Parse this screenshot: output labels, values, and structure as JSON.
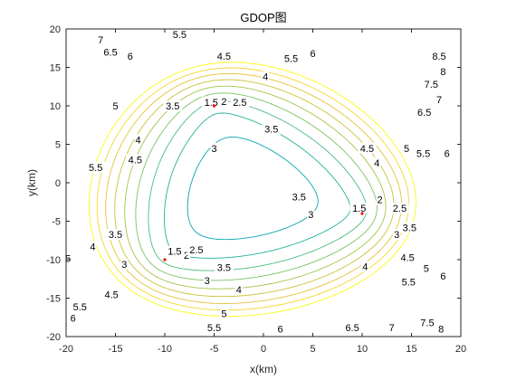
{
  "chart_data": {
    "type": "contour",
    "title": "GDOP图",
    "xlabel": "x(km)",
    "ylabel": "y(km)",
    "xlim": [
      -20,
      20
    ],
    "ylim": [
      -20,
      20
    ],
    "xticks": [
      -20,
      -15,
      -10,
      -5,
      0,
      5,
      10,
      15,
      20
    ],
    "yticks": [
      -20,
      -15,
      -10,
      -5,
      0,
      5,
      10,
      15,
      20
    ],
    "grid": false,
    "colormap": "parula",
    "contour_levels": [
      1.5,
      2,
      2.5,
      3,
      3.5,
      4,
      4.5,
      5,
      5.5,
      6,
      6.5,
      7,
      7.5,
      8,
      8.5
    ],
    "stations": [
      {
        "x": -5,
        "y": 10
      },
      {
        "x": -10,
        "y": -10
      },
      {
        "x": 10,
        "y": -4
      }
    ],
    "station_color": "#ff0000",
    "contour_labels": [
      {
        "text": "7",
        "x": -16.5,
        "y": 18.6
      },
      {
        "text": "6.5",
        "x": -15.5,
        "y": 17.0
      },
      {
        "text": "6",
        "x": -13.5,
        "y": 16.5
      },
      {
        "text": "5.5",
        "x": -8.5,
        "y": 19.3
      },
      {
        "text": "4.5",
        "x": -4.0,
        "y": 16.5
      },
      {
        "text": "5.5",
        "x": 2.8,
        "y": 16.2
      },
      {
        "text": "6",
        "x": 5.0,
        "y": 16.8
      },
      {
        "text": "4",
        "x": 0.2,
        "y": 13.8
      },
      {
        "text": "8.5",
        "x": 17.8,
        "y": 16.5
      },
      {
        "text": "8",
        "x": 18.2,
        "y": 14.5
      },
      {
        "text": "7.5",
        "x": 17.0,
        "y": 12.8
      },
      {
        "text": "7",
        "x": 17.8,
        "y": 10.8
      },
      {
        "text": "6.5",
        "x": 16.3,
        "y": 9.2
      },
      {
        "text": "5",
        "x": -15.0,
        "y": 10.0
      },
      {
        "text": "3.5",
        "x": -9.2,
        "y": 10.0
      },
      {
        "text": "1.5",
        "x": -5.3,
        "y": 10.5
      },
      {
        "text": "2",
        "x": -4.0,
        "y": 10.6
      },
      {
        "text": "2.5",
        "x": -2.4,
        "y": 10.5
      },
      {
        "text": "3.5",
        "x": 0.8,
        "y": 7.0
      },
      {
        "text": "3",
        "x": -5.0,
        "y": 4.5
      },
      {
        "text": "4",
        "x": -12.7,
        "y": 5.6
      },
      {
        "text": "4.5",
        "x": -13.0,
        "y": 3.0
      },
      {
        "text": "5.5",
        "x": -17.0,
        "y": 2.0
      },
      {
        "text": "4.5",
        "x": 10.5,
        "y": 4.5
      },
      {
        "text": "5",
        "x": 14.5,
        "y": 4.5
      },
      {
        "text": "5.5",
        "x": 16.2,
        "y": 3.8
      },
      {
        "text": "6",
        "x": 18.6,
        "y": 3.8
      },
      {
        "text": "4",
        "x": 11.5,
        "y": 2.6
      },
      {
        "text": "3.5",
        "x": 3.6,
        "y": -1.8
      },
      {
        "text": "1.5",
        "x": 9.7,
        "y": -3.3
      },
      {
        "text": "2",
        "x": 11.8,
        "y": -2.2
      },
      {
        "text": "2.5",
        "x": 13.8,
        "y": -3.3
      },
      {
        "text": "3",
        "x": 4.8,
        "y": -4.1
      },
      {
        "text": "3",
        "x": 13.5,
        "y": -6.7
      },
      {
        "text": "3.5",
        "x": 14.8,
        "y": -5.8
      },
      {
        "text": "3.5",
        "x": -15.0,
        "y": -6.7
      },
      {
        "text": "4",
        "x": -17.3,
        "y": -8.3
      },
      {
        "text": "5",
        "x": -19.8,
        "y": -9.8
      },
      {
        "text": "1.5",
        "x": -9.0,
        "y": -8.9
      },
      {
        "text": "2",
        "x": -7.8,
        "y": -9.4
      },
      {
        "text": "2.5",
        "x": -6.8,
        "y": -8.7
      },
      {
        "text": "3",
        "x": -14.1,
        "y": -10.6
      },
      {
        "text": "3",
        "x": -5.7,
        "y": -12.7
      },
      {
        "text": "3.5",
        "x": -4.0,
        "y": -11.0
      },
      {
        "text": "4",
        "x": 10.3,
        "y": -10.9
      },
      {
        "text": "4.5",
        "x": 14.6,
        "y": -9.7
      },
      {
        "text": "5",
        "x": 16.5,
        "y": -11.1
      },
      {
        "text": "5.5",
        "x": 14.7,
        "y": -12.9
      },
      {
        "text": "6",
        "x": 18.2,
        "y": -12.1
      },
      {
        "text": "4",
        "x": -2.5,
        "y": -13.9
      },
      {
        "text": "4.5",
        "x": -15.4,
        "y": -14.5
      },
      {
        "text": "5",
        "x": -4.0,
        "y": -17.0
      },
      {
        "text": "5.5",
        "x": -18.6,
        "y": -16.1
      },
      {
        "text": "6",
        "x": -19.3,
        "y": -17.6
      },
      {
        "text": "5.5",
        "x": -5.0,
        "y": -18.8
      },
      {
        "text": "6",
        "x": 1.7,
        "y": -19.0
      },
      {
        "text": "6.5",
        "x": 9.0,
        "y": -18.8
      },
      {
        "text": "7",
        "x": 13.0,
        "y": -18.8
      },
      {
        "text": "7.5",
        "x": 16.6,
        "y": -18.2
      },
      {
        "text": "8",
        "x": 18.0,
        "y": -19.0
      }
    ]
  }
}
